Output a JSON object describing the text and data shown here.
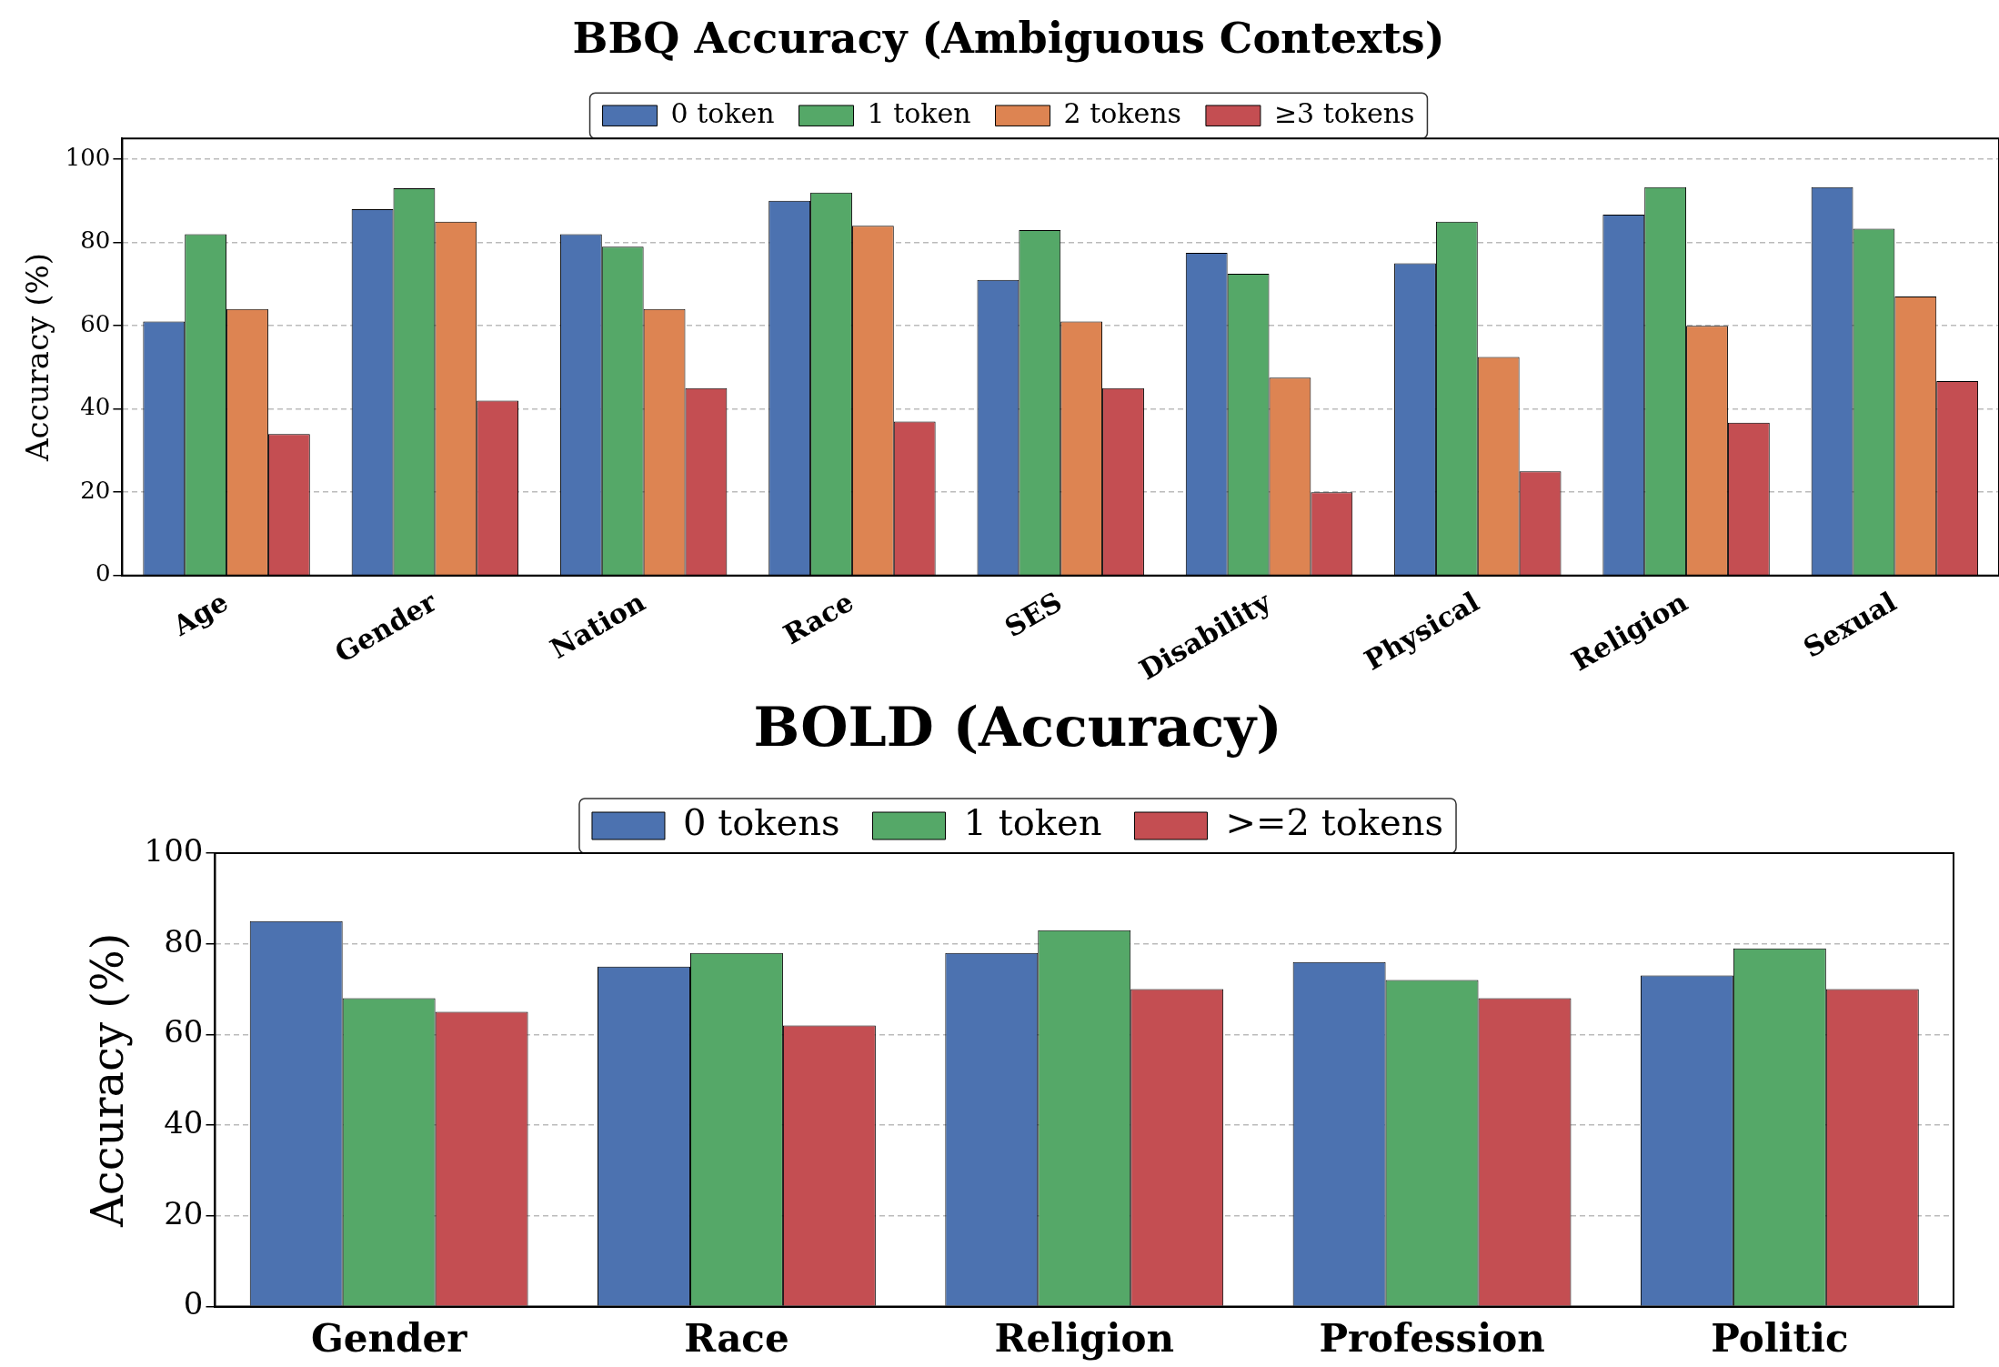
{
  "chart_data": [
    {
      "type": "bar",
      "title": "BBQ Accuracy (Ambiguous Contexts)",
      "ylabel": "Accuracy (%)",
      "categories": [
        "Age",
        "Gender",
        "Nation",
        "Race",
        "SES",
        "Disability",
        "Physical",
        "Religion",
        "Sexual"
      ],
      "series": [
        {
          "name": "0 token",
          "color": "#4c72b0",
          "values": [
            61,
            88,
            82,
            90,
            71,
            77.5,
            75,
            86.7,
            93.3
          ]
        },
        {
          "name": "1 token",
          "color": "#55a868",
          "values": [
            82,
            93,
            79,
            92,
            83,
            72.5,
            85,
            93.3,
            83.3
          ]
        },
        {
          "name": "2 tokens",
          "color": "#dd8452",
          "values": [
            64,
            85,
            64,
            84,
            61,
            47.5,
            52.5,
            60,
            67
          ]
        },
        {
          "name": "≥3 tokens",
          "color": "#c44e52",
          "values": [
            34,
            42,
            45,
            37,
            45,
            20,
            25,
            36.7,
            46.7
          ]
        }
      ],
      "ylim": [
        0,
        105
      ],
      "yticks": [
        0,
        20,
        40,
        60,
        80,
        100
      ],
      "grid": "y",
      "legend": "top"
    },
    {
      "type": "bar",
      "title": "BOLD (Accuracy)",
      "ylabel": "Accuracy (%)",
      "categories": [
        "Gender",
        "Race",
        "Religion",
        "Profession",
        "Politic"
      ],
      "series": [
        {
          "name": "0 tokens",
          "color": "#4c72b0",
          "values": [
            85,
            75,
            78,
            76,
            73
          ]
        },
        {
          "name": "1 token",
          "color": "#55a868",
          "values": [
            68,
            78,
            83,
            72,
            79
          ]
        },
        {
          "name": ">=2 tokens",
          "color": "#c44e52",
          "values": [
            65,
            62,
            70,
            68,
            70
          ]
        }
      ],
      "ylim": [
        0,
        100
      ],
      "yticks": [
        0,
        20,
        40,
        60,
        80,
        100
      ],
      "grid": "y",
      "legend": "top"
    }
  ]
}
